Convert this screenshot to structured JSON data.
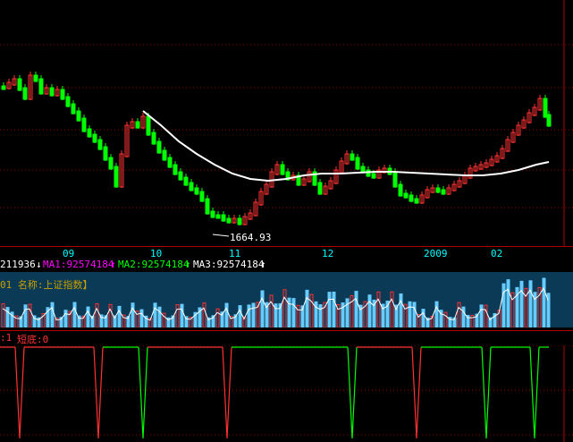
{
  "price_chart": {
    "low_label": "1664.93",
    "colors": {
      "up": "#ff3232",
      "down": "#00ff00",
      "ma": "#ffffff",
      "grid": "#a00000"
    }
  },
  "x_axis": {
    "labels": [
      {
        "text": "09"
      },
      {
        "text": "10"
      },
      {
        "text": "11"
      },
      {
        "text": "12"
      },
      {
        "text": "2009"
      },
      {
        "text": "02"
      }
    ]
  },
  "volume_header": {
    "prefix": "211936",
    "arrow1": "↓",
    "ma1": "MA1:92574184",
    "arrow2": "↑",
    "ma2": "MA2:92574184",
    "arrow3": "↑",
    "ma3": "MA3:92574184",
    "arrow4": "↑"
  },
  "volume_panel": {
    "title": "01 名称:上证指数】"
  },
  "indicator_header": {
    "left": ":1",
    "name": "短底:0"
  },
  "chart_data": {
    "type": "candlestick",
    "title": "上证指数",
    "x_labels": [
      "09",
      "10",
      "11",
      "12",
      "2009",
      "02"
    ],
    "min_label": "1664.93",
    "series": [
      {
        "name": "MA1",
        "value": "92574184"
      },
      {
        "name": "MA2",
        "value": "92574184"
      },
      {
        "name": "MA3",
        "value": "92574184"
      }
    ]
  }
}
